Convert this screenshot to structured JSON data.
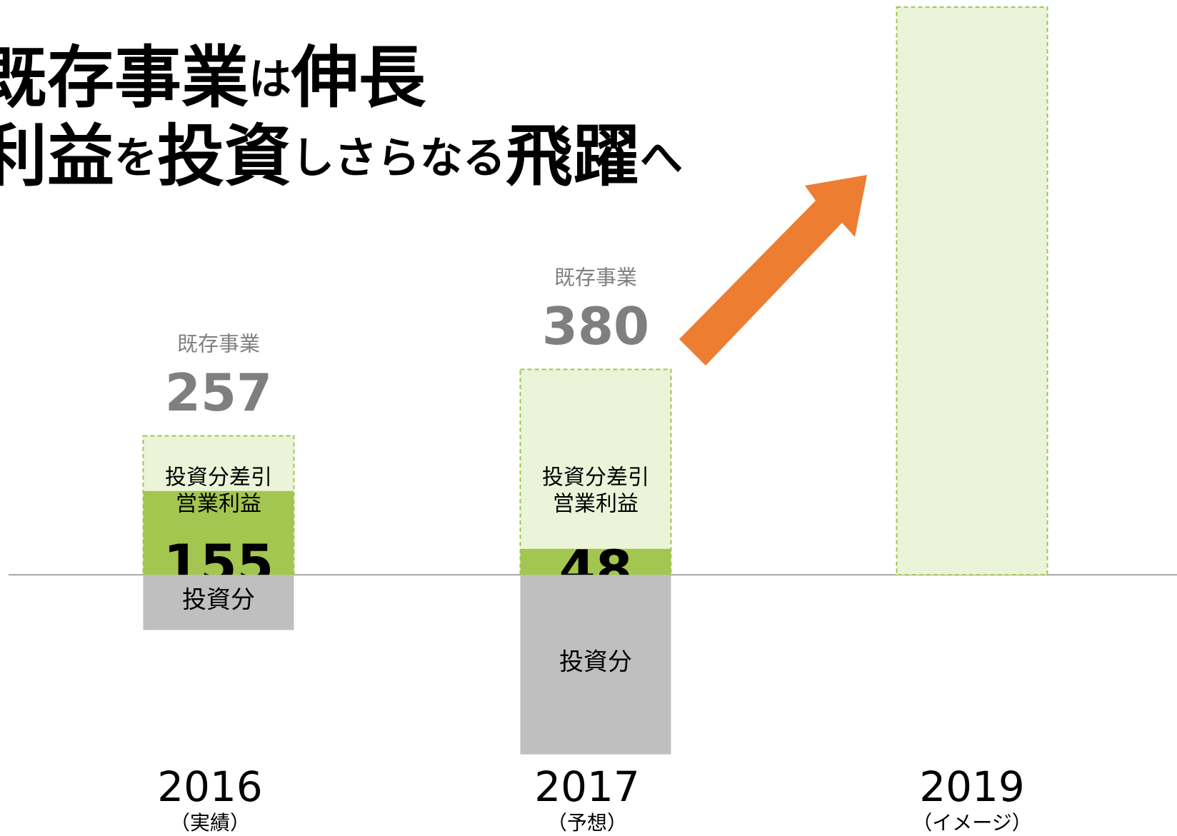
{
  "chart_data": {
    "type": "bar",
    "title": [
      [
        "既存事業",
        "は",
        "伸長"
      ],
      [
        "利益",
        "を",
        "投資",
        "しさらなる",
        "飛躍",
        "へ"
      ]
    ],
    "categories": [
      "2016",
      "2017",
      "2019"
    ],
    "category_notes": [
      "（実績）",
      "（予想）",
      "（イメージ）"
    ],
    "series": [
      {
        "name": "既存事業",
        "color": "#ebf3d9",
        "values": [
          257,
          380,
          1050
        ],
        "value_labels": [
          "257",
          "380",
          null
        ]
      },
      {
        "name": [
          "投資分差引",
          "営業利益"
        ],
        "color": "#a2c64f",
        "values": [
          155,
          48,
          null
        ]
      },
      {
        "name": "投資分",
        "color": "#bfbfbf",
        "values": [
          -102,
          -332,
          null
        ]
      }
    ],
    "ylim": [
      -483,
      1063
    ],
    "yticks": [
      0
    ]
  }
}
